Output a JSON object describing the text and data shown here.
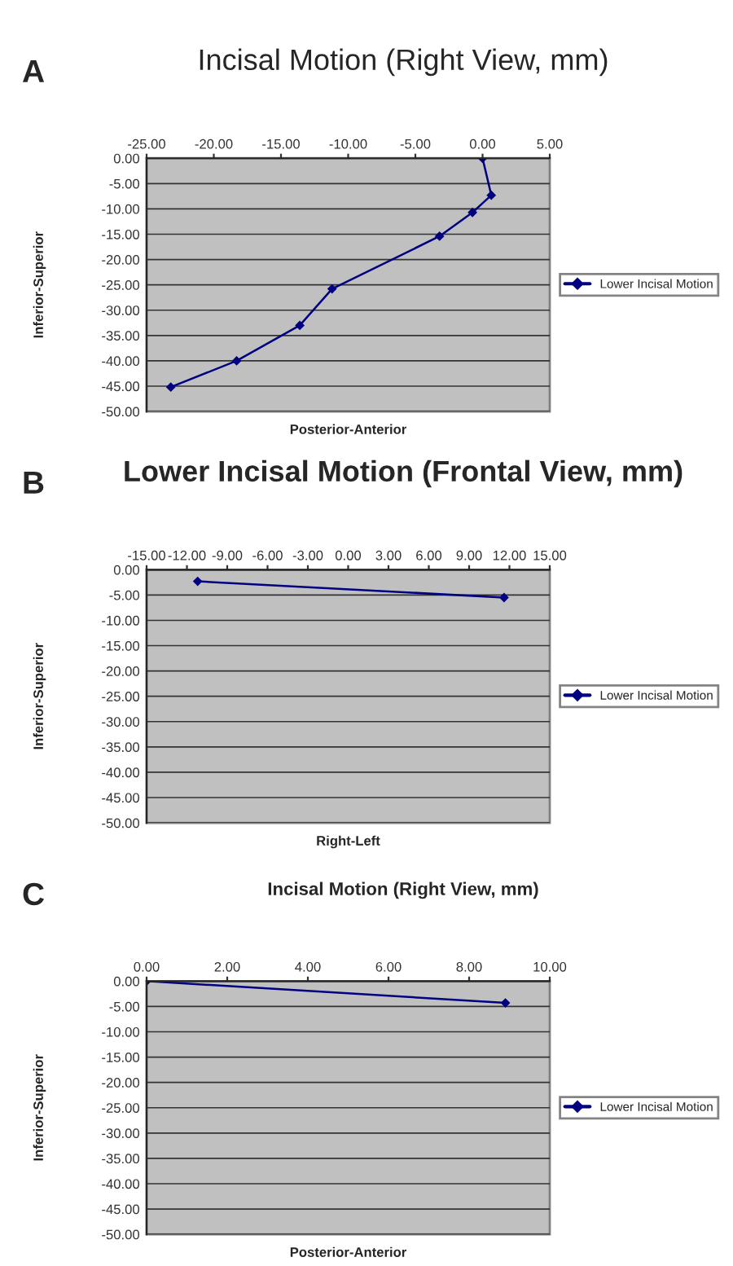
{
  "chart_data": [
    {
      "type": "line",
      "title": "Incisal Motion (Right View, mm)",
      "xlabel": "Posterior-Anterior",
      "ylabel": "Inferior-Superior",
      "annotations": [
        "A"
      ],
      "series": [
        {
          "name": "Lower Incisal Motion",
          "color": "#000080",
          "x": [
            0,
            0.65,
            -0.75,
            -3.2,
            -11.2,
            -13.6,
            -18.3,
            -23.2
          ],
          "values": [
            0,
            -7.3,
            -10.7,
            -15.4,
            -25.8,
            -33,
            -40,
            -45.2
          ]
        }
      ],
      "xlim": [
        -25,
        5
      ],
      "xticks": [
        {
          "value": -25,
          "label": "-25.00"
        },
        {
          "value": -20,
          "label": "-20.00"
        },
        {
          "value": -15,
          "label": "-15.00"
        },
        {
          "value": -10,
          "label": "-10.00"
        },
        {
          "value": -5,
          "label": "-5.00"
        },
        {
          "value": 0,
          "label": "0.00"
        },
        {
          "value": 5,
          "label": "5.00"
        }
      ],
      "ylim": [
        -50,
        0
      ],
      "yticks": [
        {
          "value": 0,
          "label": "0.00"
        },
        {
          "value": -5,
          "label": "-5.00"
        },
        {
          "value": -10,
          "label": "-10.00"
        },
        {
          "value": -15,
          "label": "-15.00"
        },
        {
          "value": -20,
          "label": "-20.00"
        },
        {
          "value": -25,
          "label": "-25.00"
        },
        {
          "value": -30,
          "label": "-30.00"
        },
        {
          "value": -35,
          "label": "-35.00"
        },
        {
          "value": -40,
          "label": "-40.00"
        },
        {
          "value": -45,
          "label": "-45.00"
        },
        {
          "value": -50,
          "label": "-50.00"
        }
      ],
      "grid": "y",
      "legend": "right",
      "marker": "diamond",
      "line_style": "solid"
    },
    {
      "type": "line",
      "title": "Lower Incisal Motion (Frontal View, mm)",
      "xlabel": "Right-Left",
      "ylabel": "Inferior-Superior",
      "annotations": [
        "B"
      ],
      "series": [
        {
          "name": "Lower Incisal Motion",
          "color": "#000080",
          "x": [
            -11.2,
            11.6
          ],
          "values": [
            -2.3,
            -5.5
          ]
        }
      ],
      "xlim": [
        -15,
        15
      ],
      "xticks": [
        {
          "value": -15,
          "label": "-15.00"
        },
        {
          "value": -12,
          "label": "-12.00"
        },
        {
          "value": -9,
          "label": "-9.00"
        },
        {
          "value": -6,
          "label": "-6.00"
        },
        {
          "value": -3,
          "label": "-3.00"
        },
        {
          "value": 0,
          "label": "0.00"
        },
        {
          "value": 3,
          "label": "3.00"
        },
        {
          "value": 6,
          "label": "6.00"
        },
        {
          "value": 9,
          "label": "9.00"
        },
        {
          "value": 12,
          "label": "12.00"
        },
        {
          "value": 15,
          "label": "15.00"
        }
      ],
      "ylim": [
        -50,
        0
      ],
      "yticks": [
        {
          "value": 0,
          "label": "0.00"
        },
        {
          "value": -5,
          "label": "-5.00"
        },
        {
          "value": -10,
          "label": "-10.00"
        },
        {
          "value": -15,
          "label": "-15.00"
        },
        {
          "value": -20,
          "label": "-20.00"
        },
        {
          "value": -25,
          "label": "-25.00"
        },
        {
          "value": -30,
          "label": "-30.00"
        },
        {
          "value": -35,
          "label": "-35.00"
        },
        {
          "value": -40,
          "label": "-40.00"
        },
        {
          "value": -45,
          "label": "-45.00"
        },
        {
          "value": -50,
          "label": "-50.00"
        }
      ],
      "grid": "y",
      "legend": "right",
      "marker": "diamond",
      "line_style": "solid"
    },
    {
      "type": "line",
      "title": "Incisal Motion (Right View, mm)",
      "xlabel": "Posterior-Anterior",
      "ylabel": "Inferior-Superior",
      "annotations": [
        "C"
      ],
      "series": [
        {
          "name": "Lower Incisal Motion",
          "color": "#000080",
          "x": [
            0,
            8.9
          ],
          "values": [
            0,
            -4.3
          ]
        }
      ],
      "xlim": [
        0,
        10
      ],
      "xticks": [
        {
          "value": 0,
          "label": "0.00"
        },
        {
          "value": 2,
          "label": "2.00"
        },
        {
          "value": 4,
          "label": "4.00"
        },
        {
          "value": 6,
          "label": "6.00"
        },
        {
          "value": 8,
          "label": "8.00"
        },
        {
          "value": 10,
          "label": "10.00"
        }
      ],
      "ylim": [
        -50,
        0
      ],
      "yticks": [
        {
          "value": 0,
          "label": "0.00"
        },
        {
          "value": -5,
          "label": "-5.00"
        },
        {
          "value": -10,
          "label": "-10.00"
        },
        {
          "value": -15,
          "label": "-15.00"
        },
        {
          "value": -20,
          "label": "-20.00"
        },
        {
          "value": -25,
          "label": "-25.00"
        },
        {
          "value": -30,
          "label": "-30.00"
        },
        {
          "value": -35,
          "label": "-35.00"
        },
        {
          "value": -40,
          "label": "-40.00"
        },
        {
          "value": -45,
          "label": "-45.00"
        },
        {
          "value": -50,
          "label": "-50.00"
        }
      ],
      "grid": "y",
      "legend": "right",
      "marker": "diamond",
      "line_style": "solid"
    }
  ]
}
